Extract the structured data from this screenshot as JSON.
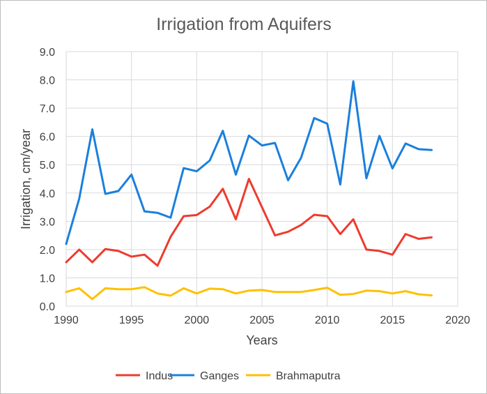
{
  "chart_data": {
    "type": "line",
    "title": "Irrigation from Aquifers",
    "xlabel": "Years",
    "ylabel": "Irrigation, cm/year",
    "xlim": [
      1990,
      2020
    ],
    "ylim": [
      0,
      9
    ],
    "x_ticks": [
      "1990",
      "1995",
      "2000",
      "2005",
      "2010",
      "2015",
      "2020"
    ],
    "y_ticks": [
      "0.0",
      "1.0",
      "2.0",
      "3.0",
      "4.0",
      "5.0",
      "6.0",
      "7.0",
      "8.0",
      "9.0"
    ],
    "grid": true,
    "legend_position": "bottom",
    "x": [
      1990,
      1991,
      1992,
      1993,
      1994,
      1995,
      1996,
      1997,
      1998,
      1999,
      2000,
      2001,
      2002,
      2003,
      2004,
      2005,
      2006,
      2007,
      2008,
      2009,
      2010,
      2011,
      2012,
      2013,
      2014,
      2015,
      2016,
      2017,
      2018
    ],
    "series": [
      {
        "name": "Indus",
        "color": "#ee3b2e",
        "values": [
          1.55,
          2.0,
          1.55,
          2.02,
          1.95,
          1.75,
          1.82,
          1.43,
          2.45,
          3.18,
          3.22,
          3.52,
          4.15,
          3.07,
          4.5,
          3.5,
          2.5,
          2.63,
          2.87,
          3.23,
          3.18,
          2.55,
          3.07,
          2.0,
          1.95,
          1.82,
          2.55,
          2.38,
          2.43
        ]
      },
      {
        "name": "Ganges",
        "color": "#1a7fdc",
        "values": [
          2.2,
          3.8,
          6.25,
          3.97,
          4.07,
          4.65,
          3.35,
          3.3,
          3.13,
          4.88,
          4.77,
          5.15,
          6.2,
          4.65,
          6.03,
          5.68,
          5.77,
          4.45,
          5.25,
          6.65,
          6.45,
          4.3,
          7.95,
          4.52,
          6.02,
          4.87,
          5.75,
          5.55,
          5.52
        ]
      },
      {
        "name": "Brahmaputra",
        "color": "#ffc000",
        "values": [
          0.5,
          0.63,
          0.25,
          0.63,
          0.6,
          0.6,
          0.67,
          0.45,
          0.37,
          0.63,
          0.45,
          0.62,
          0.6,
          0.45,
          0.55,
          0.57,
          0.5,
          0.5,
          0.5,
          0.57,
          0.65,
          0.4,
          0.43,
          0.55,
          0.53,
          0.45,
          0.53,
          0.42,
          0.38
        ]
      }
    ]
  }
}
